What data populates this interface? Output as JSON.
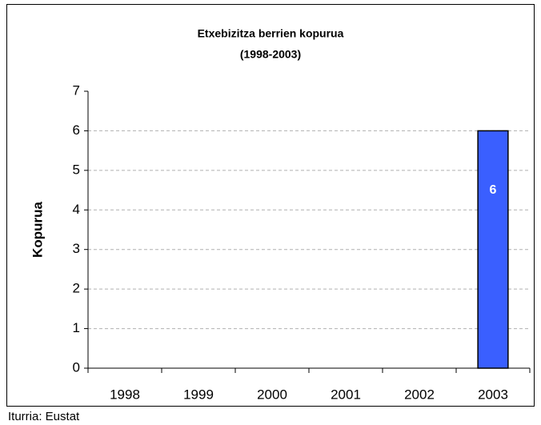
{
  "chart_data": {
    "type": "bar",
    "title": "Etxebizitza berrien kopurua",
    "subtitle": "(1998-2003)",
    "y_label": "Kopurua",
    "source": "Iturria: Eustat",
    "categories": [
      "1998",
      "1999",
      "2000",
      "2001",
      "2002",
      "2003"
    ],
    "values": [
      null,
      null,
      null,
      null,
      null,
      6
    ],
    "color": "#3a5fff",
    "ylim": [
      0,
      7
    ],
    "yticks": [
      0,
      1,
      2,
      3,
      4,
      5,
      6,
      7
    ],
    "grid": true
  }
}
